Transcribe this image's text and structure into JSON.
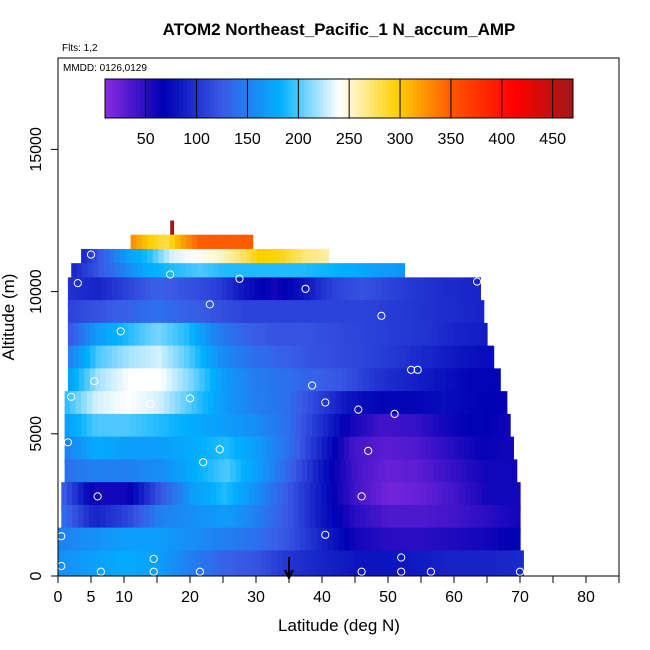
{
  "chart_data": {
    "type": "heatmap",
    "title": "ATOM2 Northeast_Pacific_1 N_accum_AMP",
    "subtitle_flights": "Flts: 1,2",
    "subtitle_dates": "MMDD: 0126,0129",
    "xlabel": "Latitude (deg N)",
    "ylabel": "Altitude (m)",
    "xlim": [
      0,
      85
    ],
    "ylim": [
      0,
      18000
    ],
    "x_ticks": [
      0,
      5,
      10,
      20,
      30,
      40,
      50,
      60,
      70,
      80
    ],
    "x_minor_ticks": [
      15,
      25,
      35,
      45,
      55,
      65,
      75,
      85
    ],
    "y_ticks": [
      0,
      5000,
      10000,
      15000
    ],
    "colorbar": {
      "range": [
        10,
        470
      ],
      "ticks": [
        50,
        100,
        150,
        200,
        250,
        300,
        350,
        400,
        450
      ],
      "colors": [
        "#8a2be2",
        "#0000b4",
        "#3a5ae6",
        "#00b0ff",
        "#ffffff",
        "#ffd000",
        "#ff5000",
        "#ff0000",
        "#a01818"
      ]
    },
    "rows": [
      {
        "y0": 11500,
        "y1": 12500,
        "x0": 17,
        "x1": 17.5,
        "values": [
          470,
          470
        ]
      },
      {
        "y0": 11000,
        "y1": 12000,
        "x0": 11,
        "x1": 29.5,
        "values": [
          330,
          300,
          280,
          320,
          350,
          350,
          350,
          350
        ]
      },
      {
        "y0": 10500,
        "y1": 11500,
        "x0": 3.5,
        "x1": 41,
        "values": [
          90,
          130,
          170,
          190,
          230,
          240,
          250,
          270,
          300,
          290,
          270,
          260
        ]
      },
      {
        "y0": 10000,
        "y1": 11000,
        "x0": 2,
        "x1": 52.5,
        "values": [
          90,
          120,
          150,
          180,
          190,
          200,
          190,
          190,
          190,
          190,
          185,
          180,
          170,
          165
        ]
      },
      {
        "y0": 9500,
        "y1": 10500,
        "x0": 1.5,
        "x1": 64,
        "values": [
          100,
          90,
          110,
          130,
          120,
          110,
          80,
          60,
          80,
          110,
          120,
          110,
          100,
          95,
          90
        ]
      },
      {
        "y0": 8700,
        "y1": 9700,
        "x0": 1.5,
        "x1": 64.5,
        "values": [
          110,
          120,
          130,
          140,
          130,
          120,
          110,
          110,
          110,
          110,
          110,
          105,
          100,
          95,
          90
        ]
      },
      {
        "y0": 7900,
        "y1": 8900,
        "x0": 1.5,
        "x1": 65,
        "values": [
          120,
          170,
          190,
          210,
          190,
          150,
          130,
          120,
          120,
          115,
          110,
          105,
          100,
          90,
          85
        ]
      },
      {
        "y0": 7100,
        "y1": 8100,
        "x0": 1.5,
        "x1": 66,
        "values": [
          150,
          200,
          220,
          230,
          200,
          160,
          140,
          130,
          120,
          115,
          110,
          100,
          90,
          80,
          75
        ]
      },
      {
        "y0": 6300,
        "y1": 7300,
        "x0": 1.5,
        "x1": 67,
        "values": [
          170,
          220,
          240,
          240,
          210,
          170,
          150,
          140,
          130,
          120,
          100,
          90,
          80,
          70,
          70
        ]
      },
      {
        "y0": 5500,
        "y1": 6500,
        "x0": 1,
        "x1": 68,
        "values": [
          190,
          230,
          240,
          230,
          200,
          170,
          150,
          140,
          110,
          80,
          70,
          70,
          75,
          70,
          65
        ]
      },
      {
        "y0": 4700,
        "y1": 5700,
        "x0": 1,
        "x1": 68.5,
        "values": [
          170,
          200,
          200,
          190,
          180,
          170,
          160,
          140,
          100,
          60,
          40,
          45,
          60,
          70,
          60
        ]
      },
      {
        "y0": 3900,
        "y1": 4900,
        "x0": 1,
        "x1": 69,
        "values": [
          150,
          180,
          170,
          170,
          180,
          190,
          170,
          140,
          90,
          40,
          30,
          35,
          50,
          65,
          60
        ]
      },
      {
        "y0": 3100,
        "y1": 4100,
        "x0": 1,
        "x1": 69.5,
        "values": [
          140,
          150,
          150,
          160,
          180,
          200,
          170,
          130,
          80,
          40,
          25,
          30,
          45,
          60,
          60
        ]
      },
      {
        "y0": 2300,
        "y1": 3300,
        "x0": 0.5,
        "x1": 70,
        "values": [
          130,
          60,
          60,
          120,
          170,
          190,
          160,
          120,
          80,
          40,
          20,
          25,
          40,
          60,
          60
        ]
      },
      {
        "y0": 1500,
        "y1": 2500,
        "x0": 0.5,
        "x1": 70,
        "values": [
          140,
          90,
          110,
          150,
          160,
          170,
          150,
          120,
          80,
          50,
          35,
          35,
          40,
          50,
          60
        ]
      },
      {
        "y0": 700,
        "y1": 1700,
        "x0": 0,
        "x1": 70,
        "values": [
          150,
          160,
          170,
          170,
          160,
          150,
          140,
          120,
          90,
          60,
          50,
          50,
          55,
          60,
          70
        ]
      },
      {
        "y0": 0,
        "y1": 900,
        "x0": 0,
        "x1": 70.5,
        "values": [
          160,
          170,
          180,
          170,
          150,
          130,
          120,
          100,
          90,
          80,
          80,
          85,
          90,
          90,
          95
        ]
      }
    ],
    "points": [
      [
        1.5,
        11300
      ],
      [
        5,
        11300
      ],
      [
        3,
        10300
      ],
      [
        17,
        10600
      ],
      [
        27.5,
        10450
      ],
      [
        37.5,
        10100
      ],
      [
        63.5,
        10350
      ],
      [
        23,
        9550
      ],
      [
        49,
        9150
      ],
      [
        9.5,
        8600
      ],
      [
        53.5,
        7250
      ],
      [
        54.5,
        7250
      ],
      [
        5.5,
        6850
      ],
      [
        38.5,
        6700
      ],
      [
        2,
        6300
      ],
      [
        14,
        6050
      ],
      [
        20,
        6250
      ],
      [
        40.5,
        6100
      ],
      [
        45.5,
        5850
      ],
      [
        51,
        5700
      ],
      [
        1.5,
        4700
      ],
      [
        24.5,
        4450
      ],
      [
        47,
        4400
      ],
      [
        22,
        4000
      ],
      [
        6,
        2800
      ],
      [
        46,
        2800
      ],
      [
        40.5,
        1450
      ],
      [
        0.5,
        1400
      ],
      [
        14.5,
        600
      ],
      [
        52,
        650
      ],
      [
        0.5,
        350
      ],
      [
        6.5,
        150
      ],
      [
        14.5,
        150
      ],
      [
        21.5,
        150
      ],
      [
        46,
        150
      ],
      [
        52,
        150
      ],
      [
        56.5,
        150
      ],
      [
        70,
        150
      ]
    ],
    "arrow_x": 35
  }
}
